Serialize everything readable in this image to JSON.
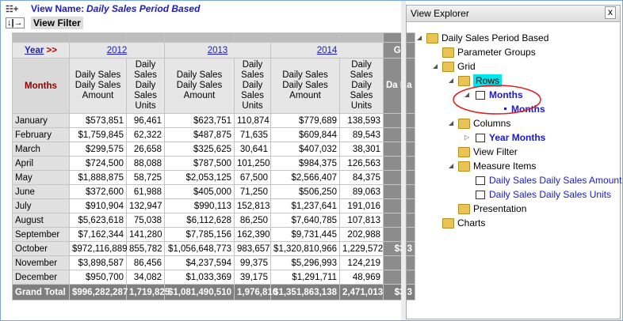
{
  "header": {
    "view_name_label": "View Name:",
    "view_name": "Daily Sales Period Based",
    "view_filter": "View Filter"
  },
  "table": {
    "year_label": "Year",
    "year_arrow": ">>",
    "years": [
      "2012",
      "2013",
      "2014",
      "Gr"
    ],
    "row_header": "Months",
    "measures": [
      "Daily Sales Daily Sales Amount",
      "Daily Sales Daily Sales Units"
    ],
    "last_measure": "Da Da",
    "rows": [
      [
        "January",
        "$573,851",
        "96,461",
        "$623,751",
        "110,874",
        "$779,689",
        "138,593"
      ],
      [
        "February",
        "$1,759,845",
        "62,322",
        "$487,875",
        "71,635",
        "$609,844",
        "89,543"
      ],
      [
        "March",
        "$299,575",
        "26,658",
        "$325,625",
        "30,641",
        "$407,032",
        "38,301"
      ],
      [
        "April",
        "$724,500",
        "88,088",
        "$787,500",
        "101,250",
        "$984,375",
        "126,563"
      ],
      [
        "May",
        "$1,888,875",
        "58,725",
        "$2,053,125",
        "67,500",
        "$2,566,407",
        "84,375"
      ],
      [
        "June",
        "$372,600",
        "61,988",
        "$405,000",
        "71,250",
        "$506,250",
        "89,063"
      ],
      [
        "July",
        "$910,904",
        "132,947",
        "$990,113",
        "152,813",
        "$1,237,641",
        "191,016"
      ],
      [
        "August",
        "$5,623,618",
        "75,038",
        "$6,112,628",
        "86,250",
        "$7,640,785",
        "107,813"
      ],
      [
        "September",
        "$7,162,344",
        "141,280",
        "$7,785,156",
        "162,390",
        "$9,731,445",
        "202,988"
      ],
      [
        "October",
        "$972,116,889",
        "855,782",
        "$1,056,648,773",
        "983,657",
        "$1,320,810,966",
        "1,229,572",
        "$3,3"
      ],
      [
        "November",
        "$3,898,587",
        "86,456",
        "$4,237,594",
        "99,375",
        "$5,296,993",
        "124,219"
      ],
      [
        "December",
        "$950,700",
        "34,082",
        "$1,033,369",
        "39,175",
        "$1,291,711",
        "48,969"
      ]
    ],
    "total": [
      "Grand Total",
      "$996,282,287",
      "1,719,825",
      "$1,081,490,510",
      "1,976,810",
      "$1,351,863,138",
      "2,471,013",
      "$3,3"
    ]
  },
  "explorer": {
    "title": "View Explorer",
    "close": "x",
    "nodes": [
      "Daily Sales Period Based",
      "Parameter Groups",
      "Grid",
      "Rows",
      "Months",
      "Months",
      "Columns",
      "Year Months",
      "View Filter",
      "Measure Items",
      "Daily Sales Daily Sales Amount",
      "Daily Sales Daily Sales Units",
      "Presentation",
      "Charts"
    ]
  }
}
